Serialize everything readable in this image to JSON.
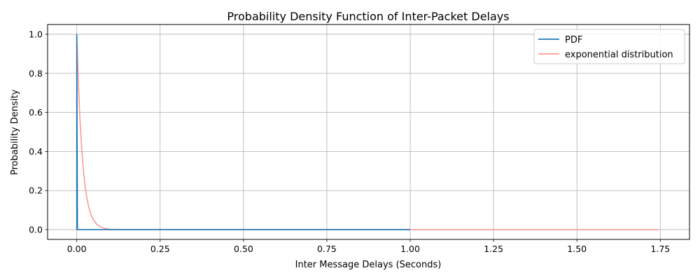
{
  "chart_data": {
    "type": "line",
    "title": "Probability Density Function of Inter-Packet Delays",
    "xlabel": "Inter Message Delays (Seconds)",
    "ylabel": "Probability Density",
    "xlim": [
      -0.0875,
      1.8375
    ],
    "ylim": [
      -0.05,
      1.05
    ],
    "xticks": [
      0.0,
      0.25,
      0.5,
      0.75,
      1.0,
      1.25,
      1.5,
      1.75
    ],
    "xtick_labels": [
      "0.00",
      "0.25",
      "0.50",
      "0.75",
      "1.00",
      "1.25",
      "1.50",
      "1.75"
    ],
    "yticks": [
      0.0,
      0.2,
      0.4,
      0.6,
      0.8,
      1.0
    ],
    "ytick_labels": [
      "0.0",
      "0.2",
      "0.4",
      "0.6",
      "0.8",
      "1.0"
    ],
    "grid": true,
    "legend_position": "top-right",
    "series": [
      {
        "name": "PDF",
        "color": "#1f77b4",
        "x": [
          0.0,
          0.0,
          0.002,
          1.0
        ],
        "y": [
          0.0,
          1.0,
          0.0,
          0.0
        ]
      },
      {
        "name": "exponential distribution",
        "color": "#ff9896",
        "x": [
          0.0,
          0.005,
          0.01,
          0.015,
          0.02,
          0.025,
          0.03,
          0.035,
          0.04,
          0.045,
          0.05,
          0.06,
          0.07,
          0.08,
          0.09,
          0.1,
          0.12,
          0.15,
          0.2,
          0.3,
          0.5,
          0.75,
          1.0,
          1.25,
          1.5,
          1.745
        ],
        "y": [
          1.0,
          0.741,
          0.549,
          0.407,
          0.301,
          0.223,
          0.165,
          0.122,
          0.091,
          0.067,
          0.05,
          0.027,
          0.015,
          0.008,
          0.004,
          0.002,
          0.001,
          0.0,
          0.0,
          0.0,
          0.0,
          0.0,
          0.0,
          0.0,
          0.0,
          0.0
        ]
      }
    ]
  }
}
